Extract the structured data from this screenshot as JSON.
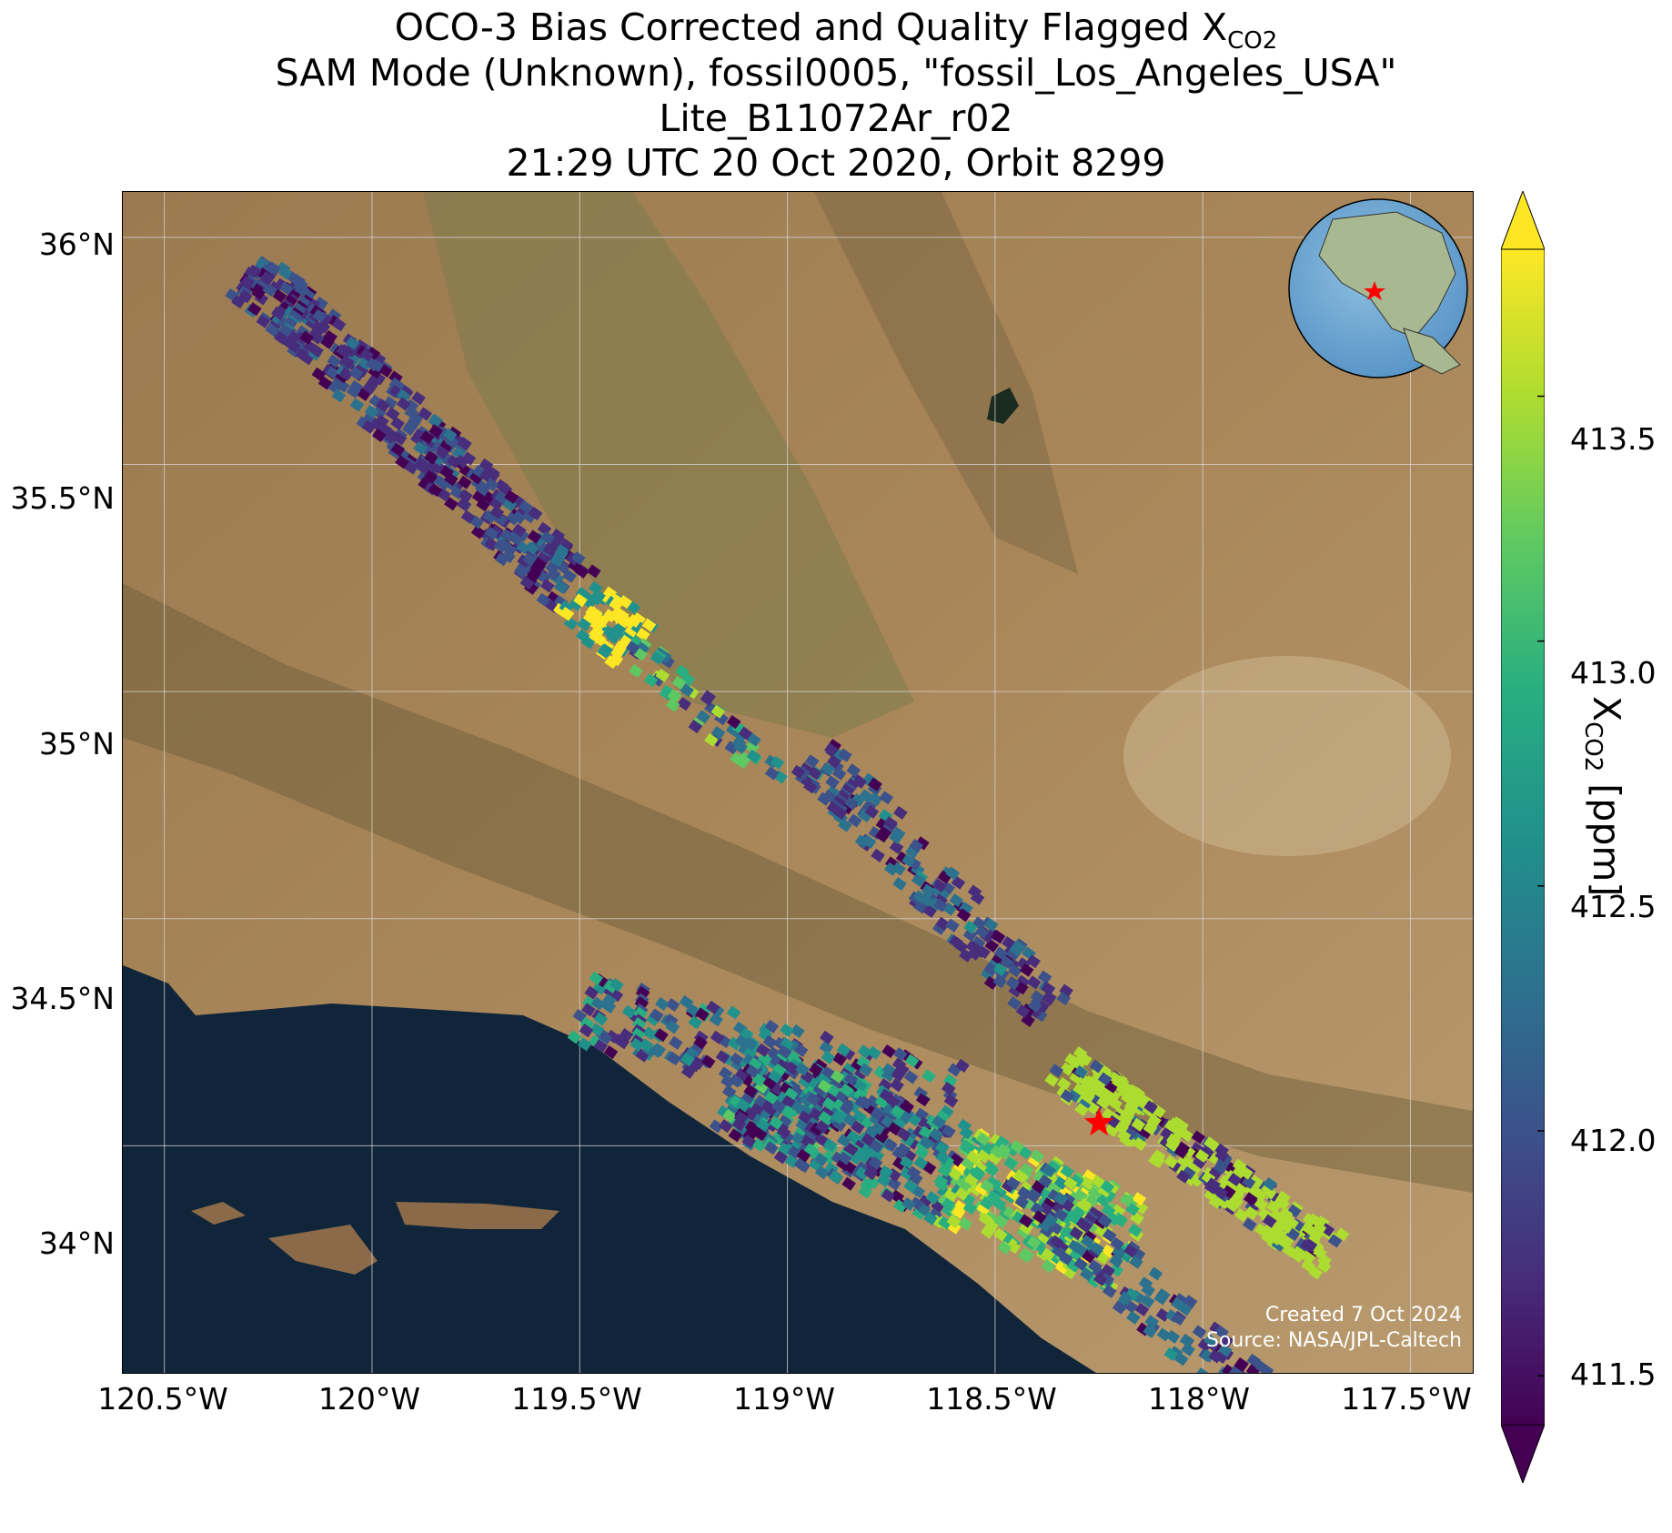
{
  "title": {
    "line1": "OCO-3 Bias Corrected and Quality Flagged X",
    "line1_sub": "CO2",
    "line2": "SAM Mode (Unknown), fossil0005, \"fossil_Los_Angeles_USA\"",
    "line3": "Lite_B11072Ar_r02",
    "line4": "21:29 UTC 20 Oct 2020, Orbit 8299"
  },
  "axes": {
    "lat_ticks": [
      "36°N",
      "35.5°N",
      "35°N",
      "34.5°N",
      "34°N"
    ],
    "lon_ticks": [
      "120.5°W",
      "120°W",
      "119.5°W",
      "119°W",
      "118.5°W",
      "118°W",
      "117.5°W"
    ],
    "lat_range": [
      33.5,
      36.1
    ],
    "lon_range": [
      -120.6,
      -117.35
    ]
  },
  "colorbar": {
    "label": "X",
    "label_sub": "CO2",
    "label_unit": " [ppm]",
    "ticks": [
      "413.5",
      "413.0",
      "412.5",
      "412.0",
      "411.5"
    ],
    "range": [
      411.4,
      413.8
    ],
    "colormap": "viridis",
    "extend": "both"
  },
  "credits": {
    "created": "Created 7 Oct 2024",
    "source": "Source: NASA/JPL-Caltech"
  },
  "target_marker": {
    "name": "fossil_Los_Angeles_USA",
    "lon": -118.25,
    "lat": 34.05,
    "color": "#ff0000"
  },
  "colors": {
    "ocean": "#11253a",
    "land": "#a07e52",
    "grid": "#cccccc",
    "marker": "#ff0000"
  }
}
